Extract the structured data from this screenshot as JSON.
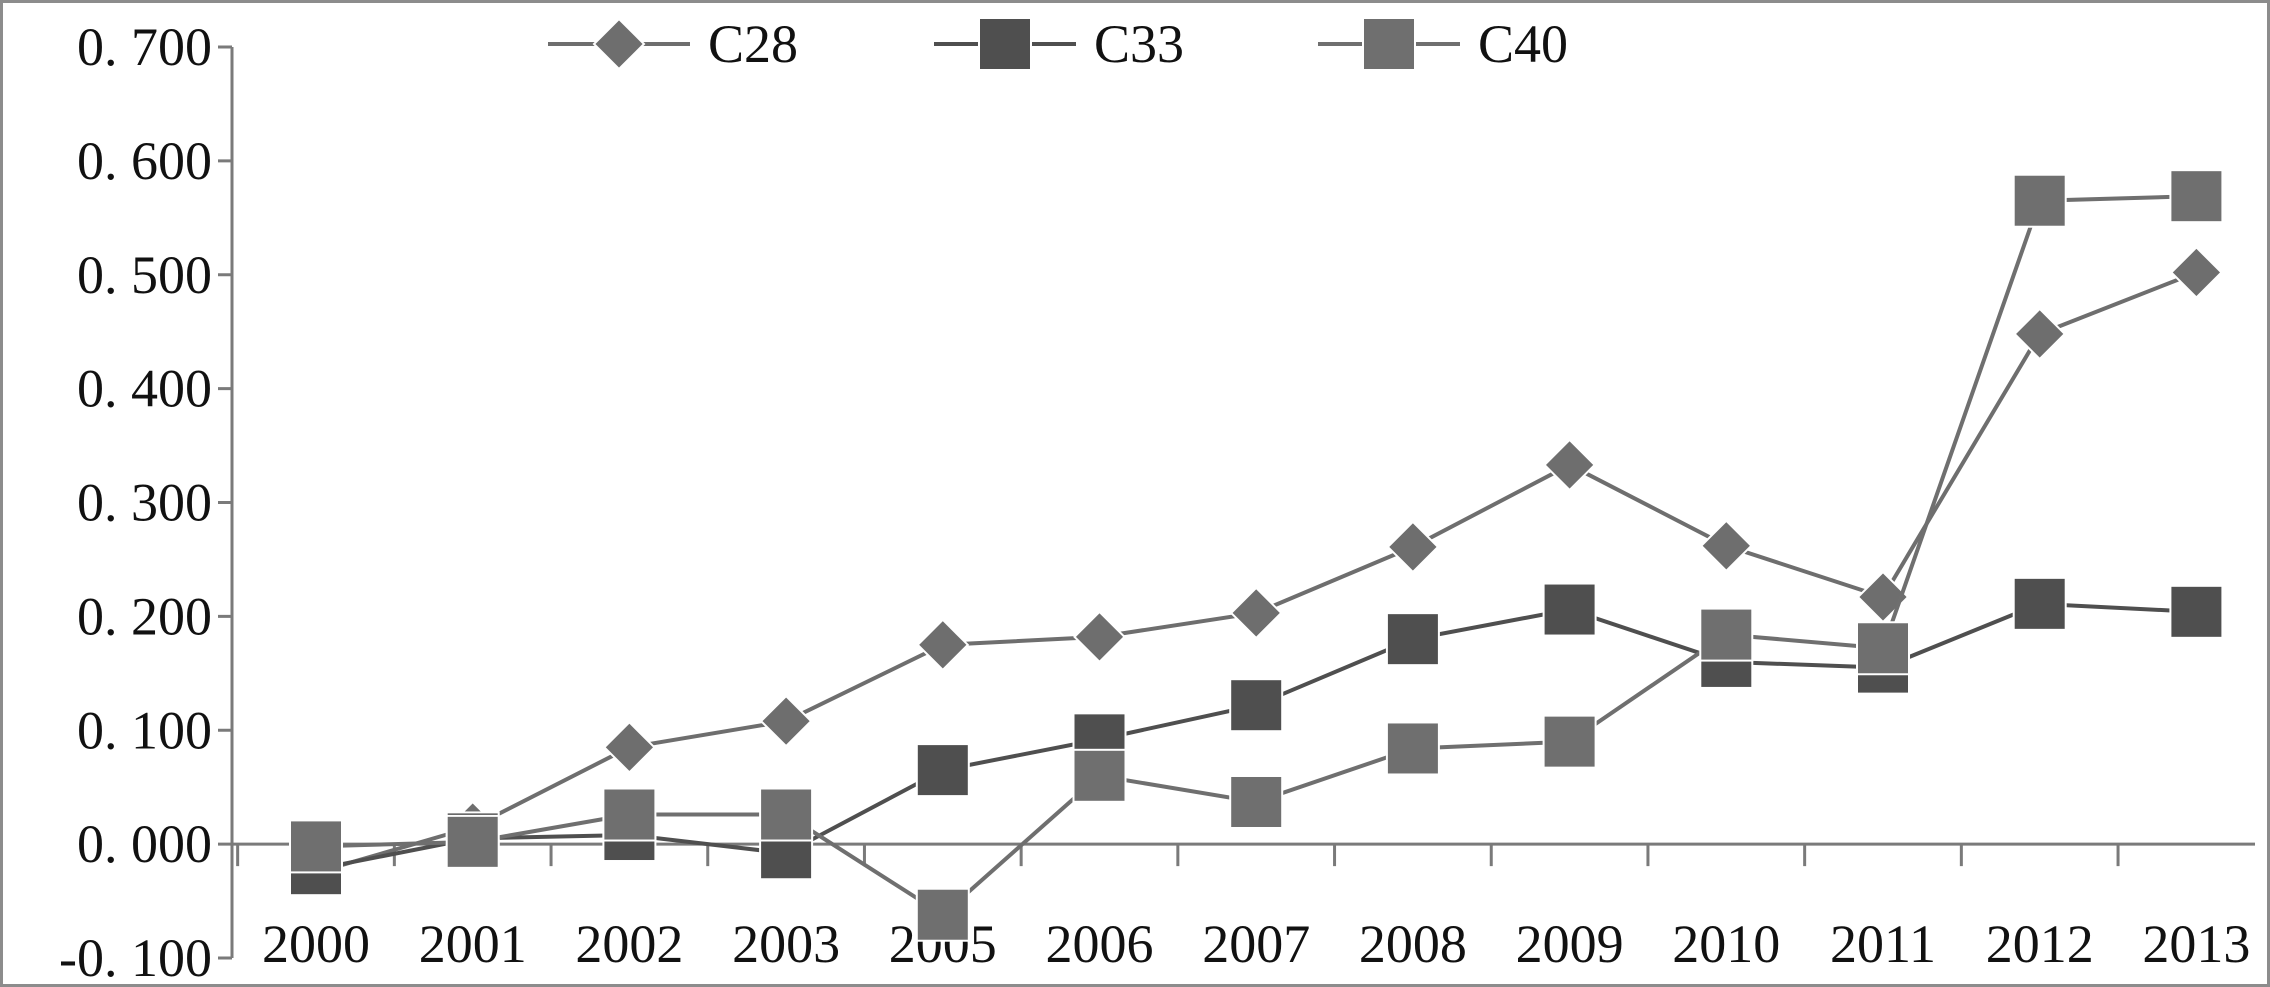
{
  "chart_data": {
    "type": "line",
    "categories": [
      "2000",
      "2001",
      "2002",
      "2003",
      "2005",
      "2006",
      "2007",
      "2008",
      "2009",
      "2010",
      "2011",
      "2012",
      "2013"
    ],
    "yticks": [
      "-0. 100",
      "0. 000",
      "0. 100",
      "0. 200",
      "0. 300",
      "0. 400",
      "0. 500",
      "0. 600",
      "0. 700"
    ],
    "ylim": [
      -0.1,
      0.7
    ],
    "grid": false,
    "legend_position": "top",
    "series": [
      {
        "name": "C28",
        "marker": "diamond",
        "color": "#6e6e6e",
        "values": [
          -0.025,
          0.015,
          0.085,
          0.108,
          0.175,
          0.182,
          0.203,
          0.261,
          0.333,
          0.262,
          0.217,
          0.448,
          0.502
        ]
      },
      {
        "name": "C33",
        "marker": "square",
        "color": "#4f4f4f",
        "values": [
          -0.022,
          0.005,
          0.008,
          -0.008,
          0.065,
          0.092,
          0.122,
          0.18,
          0.206,
          0.16,
          0.155,
          0.211,
          0.204
        ]
      },
      {
        "name": "C40",
        "marker": "square",
        "color": "#6f6f6f",
        "values": [
          -0.002,
          0.002,
          0.026,
          0.026,
          -0.062,
          0.06,
          0.037,
          0.084,
          0.09,
          0.184,
          0.172,
          0.565,
          0.569
        ]
      }
    ]
  }
}
